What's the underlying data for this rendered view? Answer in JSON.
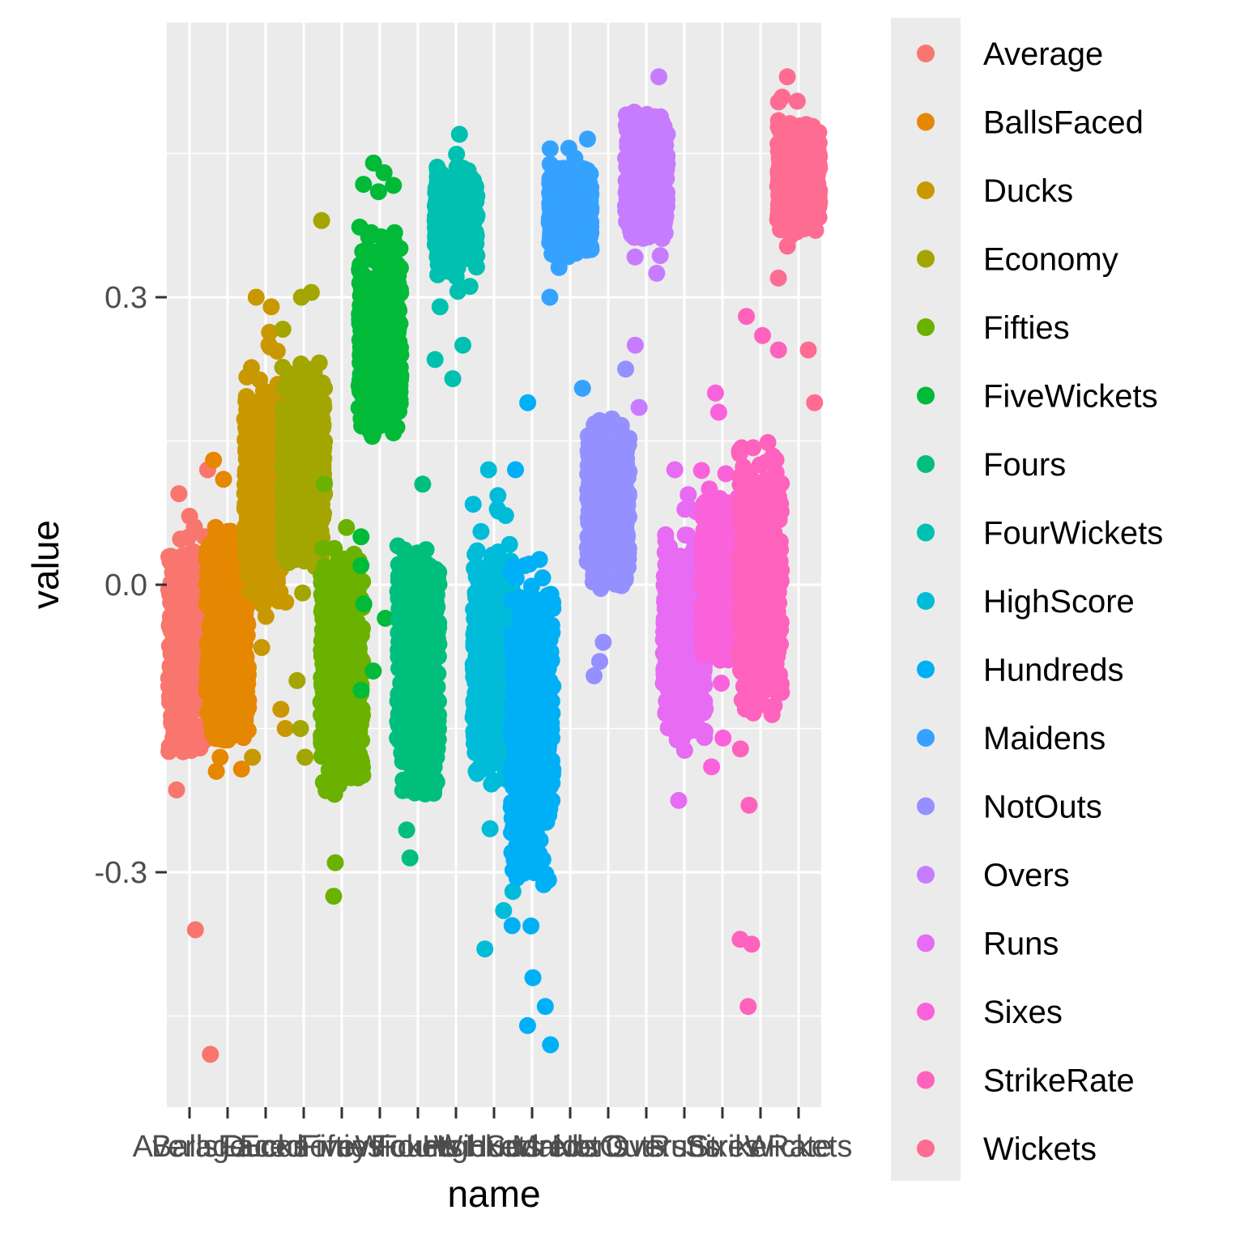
{
  "chart_data": {
    "type": "scatter",
    "subtype": "jitter",
    "xlabel": "name",
    "ylabel": "value",
    "ylim": [
      -0.535,
      0.6
    ],
    "y_ticks": [
      -0.3,
      0.0,
      0.3
    ],
    "y_tick_labels": [
      "-0.3",
      "0.0",
      "0.3"
    ],
    "grid": true,
    "legend_position": "right",
    "categories": [
      "Average",
      "BallsFaced",
      "Ducks",
      "Economy",
      "Fifties",
      "FiveWickets",
      "Fours",
      "FourWickets",
      "HighScore",
      "Hundreds",
      "Maidens",
      "NotOuts",
      "Overs",
      "Runs",
      "Sixes",
      "StrikeRate",
      "Wickets"
    ],
    "series": [
      {
        "name": "Average",
        "color": "#F8766D",
        "y_range": [
          -0.22,
          0.08
        ],
        "outliers": [
          0.12,
          0.095,
          0.05,
          -0.36,
          -0.49
        ]
      },
      {
        "name": "BallsFaced",
        "color": "#E58700",
        "y_range": [
          -0.215,
          0.105
        ],
        "outliers": [
          0.13,
          0.11
        ]
      },
      {
        "name": "Ducks",
        "color": "#C99800",
        "y_range": [
          -0.08,
          0.27
        ],
        "outliers": [
          0.3,
          0.29,
          -0.13,
          -0.15,
          -0.18
        ]
      },
      {
        "name": "Economy",
        "color": "#A3A500",
        "y_range": [
          -0.03,
          0.28
        ],
        "outliers": [
          0.38,
          0.305,
          0.3,
          -0.1,
          -0.15,
          -0.18
        ]
      },
      {
        "name": "Fifties",
        "color": "#6BB100",
        "y_range": [
          -0.28,
          0.1
        ],
        "outliers": [
          -0.29,
          -0.325,
          0.105
        ]
      },
      {
        "name": "FiveWickets",
        "color": "#00BA38",
        "y_range": [
          0.11,
          0.42
        ],
        "outliers": [
          0.44,
          0.43,
          0.05,
          0.02,
          -0.02,
          -0.035,
          -0.09,
          -0.11
        ]
      },
      {
        "name": "Fours",
        "color": "#00BF7D",
        "y_range": [
          -0.28,
          0.1
        ],
        "outliers": [
          -0.285,
          0.105
        ]
      },
      {
        "name": "FourWickets",
        "color": "#00C0AF",
        "y_range": [
          0.3,
          0.46
        ],
        "outliers": [
          0.47,
          0.29,
          0.25,
          0.235,
          0.215
        ]
      },
      {
        "name": "HighScore",
        "color": "#00BCD8",
        "y_range": [
          -0.27,
          0.1
        ],
        "outliers": [
          0.12,
          -0.32,
          -0.34,
          -0.38
        ]
      },
      {
        "name": "Hundreds",
        "color": "#00B0F6",
        "y_range": [
          -0.39,
          0.1
        ],
        "outliers": [
          0.19,
          0.12,
          -0.41,
          -0.44,
          -0.46,
          -0.48
        ]
      },
      {
        "name": "Maidens",
        "color": "#35A2FF",
        "y_range": [
          0.32,
          0.46
        ],
        "outliers": [
          0.465,
          0.3,
          0.205
        ]
      },
      {
        "name": "NotOuts",
        "color": "#9590FF",
        "y_range": [
          -0.04,
          0.21
        ],
        "outliers": [
          0.225,
          -0.06,
          -0.08,
          -0.095
        ]
      },
      {
        "name": "Overs",
        "color": "#C77CFF",
        "y_range": [
          0.33,
          0.52
        ],
        "outliers": [
          0.53,
          0.325,
          0.25,
          0.185
        ]
      },
      {
        "name": "Runs",
        "color": "#E76BF3",
        "y_range": [
          -0.215,
          0.1
        ],
        "outliers": [
          0.12,
          -0.225
        ]
      },
      {
        "name": "Sixes",
        "color": "#FA62DB",
        "y_range": [
          -0.12,
          0.13
        ],
        "outliers": [
          0.18,
          0.2,
          -0.16,
          -0.19
        ]
      },
      {
        "name": "StrikeRate",
        "color": "#FF62BC",
        "y_range": [
          -0.2,
          0.21
        ],
        "outliers": [
          0.28,
          0.26,
          0.245,
          -0.23,
          -0.37,
          -0.375,
          -0.44
        ]
      },
      {
        "name": "Wickets",
        "color": "#FF6C91",
        "y_range": [
          0.34,
          0.51
        ],
        "outliers": [
          0.53,
          0.32,
          0.245,
          0.19
        ]
      }
    ]
  }
}
